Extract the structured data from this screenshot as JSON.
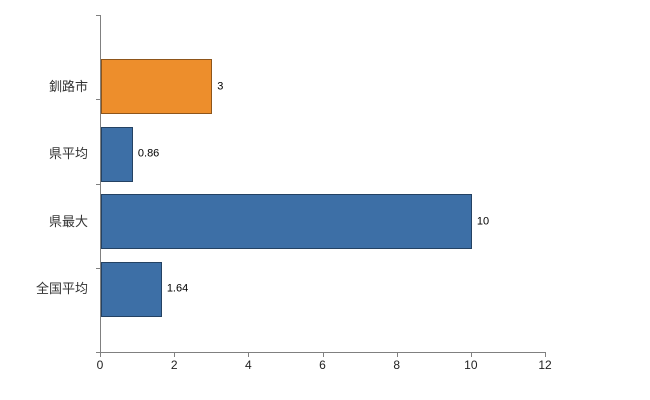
{
  "chart_data": {
    "type": "bar",
    "orientation": "horizontal",
    "title": "",
    "xlabel": "",
    "ylabel": "",
    "categories": [
      "釧路市",
      "県平均",
      "県最大",
      "全国平均"
    ],
    "values": [
      3,
      0.86,
      10,
      1.64
    ],
    "value_labels": [
      "3",
      "0.86",
      "10",
      "1.64"
    ],
    "bar_colors": [
      "#ED8E2C",
      "#3D6FA6",
      "#3D6FA6",
      "#3D6FA6"
    ],
    "highlight_color": "#ED8E2C",
    "default_bar_color": "#3D6FA6",
    "xlim": [
      0,
      12
    ],
    "x_ticks": [
      0,
      2,
      4,
      6,
      8,
      10,
      12
    ],
    "grid": false,
    "legend_position": "none",
    "background_color": "#FFFFFF",
    "axis_color": "#808080"
  }
}
